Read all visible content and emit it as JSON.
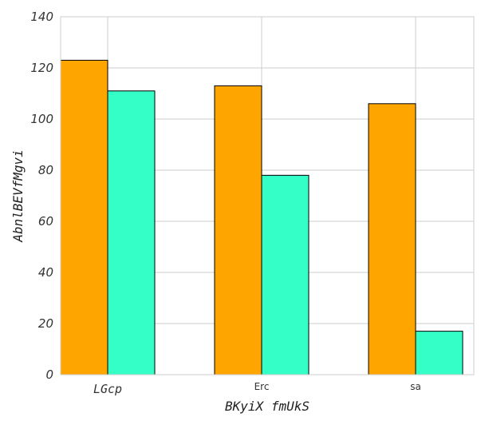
{
  "chart_data": {
    "type": "bar",
    "categories": [
      "LGcp",
      "Erc",
      "sa"
    ],
    "series": [
      {
        "values": [
          123,
          113,
          106
        ],
        "color": "#FFA500"
      },
      {
        "values": [
          111,
          78,
          17
        ],
        "color": "#33FFC6"
      }
    ],
    "xlabel": "BKyiX fmUkS",
    "ylabel": "AbnlBEVfMgvi",
    "ylim": [
      0,
      140
    ],
    "yticks": [
      0,
      20,
      40,
      60,
      80,
      100,
      120,
      140
    ],
    "grid": true,
    "legend": "none"
  }
}
